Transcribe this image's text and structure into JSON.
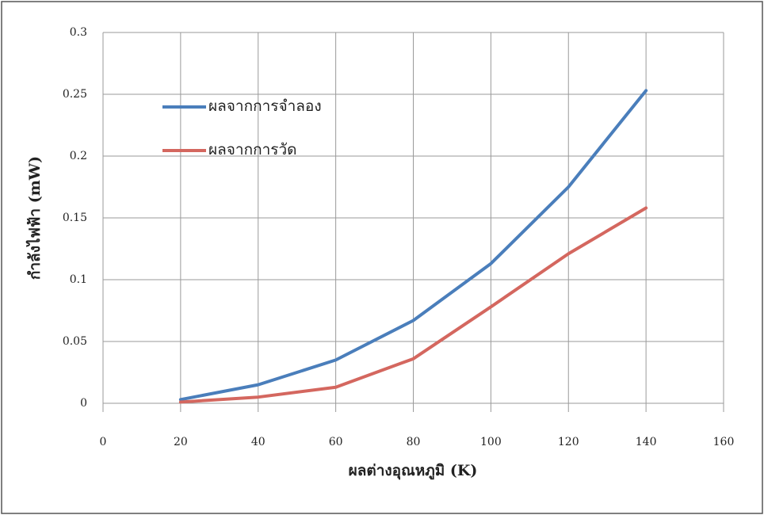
{
  "chart_data": {
    "type": "line",
    "x": [
      20,
      40,
      60,
      80,
      100,
      120,
      140
    ],
    "series": [
      {
        "name": "ผลจากการจำลอง",
        "color": "#4a7ebb",
        "values": [
          0.003,
          0.015,
          0.035,
          0.067,
          0.113,
          0.175,
          0.253
        ]
      },
      {
        "name": "ผลจากการวัด",
        "color": "#d4675f",
        "values": [
          0.001,
          0.005,
          0.013,
          0.036,
          0.078,
          0.121,
          0.158
        ]
      }
    ],
    "xlabel": "ผลต่างอุณหภูมิ (K)",
    "ylabel": "กำลังไฟฟ้า (mW)",
    "xlim": [
      0,
      160
    ],
    "xticks": [
      0,
      20,
      40,
      60,
      80,
      100,
      120,
      140,
      160
    ],
    "ylim": [
      0,
      0.3
    ],
    "yticks": [
      0,
      0.05,
      0.1,
      0.15,
      0.2,
      0.25,
      0.3
    ],
    "grid": true,
    "legend": "upper left"
  }
}
